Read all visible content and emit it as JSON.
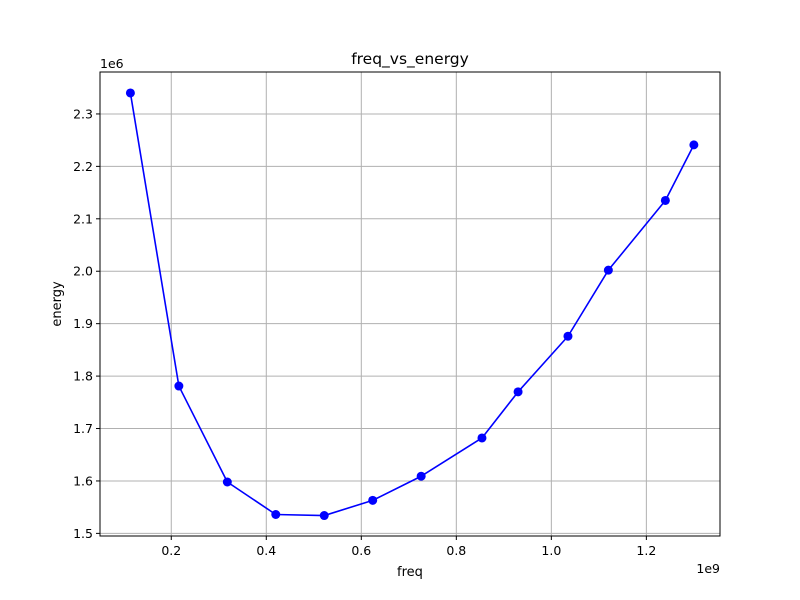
{
  "chart_data": {
    "type": "line",
    "title": "freq_vs_energy",
    "xlabel": "freq",
    "ylabel": "energy",
    "x_offset_label": "1e9",
    "y_offset_label": "1e6",
    "x_multiplier": 1000000000,
    "y_multiplier": 1000000,
    "xlim": [
      0.05,
      1.355
    ],
    "ylim": [
      1.495,
      2.38
    ],
    "x_ticks": [
      0.2,
      0.4,
      0.6,
      0.8,
      1.0,
      1.2
    ],
    "x_tick_labels": [
      "0.2",
      "0.4",
      "0.6",
      "0.8",
      "1.0",
      "1.2"
    ],
    "y_ticks": [
      1.5,
      1.6,
      1.7,
      1.8,
      1.9,
      2.0,
      2.1,
      2.2,
      2.3
    ],
    "y_tick_labels": [
      "1.5",
      "1.6",
      "1.7",
      "1.8",
      "1.9",
      "2.0",
      "2.1",
      "2.2",
      "2.3"
    ],
    "grid": true,
    "series": [
      {
        "color": "#0000ff",
        "marker": "circle",
        "x": [
          0.114,
          0.216,
          0.318,
          0.42,
          0.522,
          0.624,
          0.726,
          0.854,
          0.93,
          1.035,
          1.12,
          1.24,
          1.3
        ],
        "y": [
          2.34,
          1.781,
          1.598,
          1.536,
          1.534,
          1.563,
          1.609,
          1.682,
          1.77,
          1.876,
          2.002,
          2.135,
          2.241
        ]
      }
    ]
  }
}
